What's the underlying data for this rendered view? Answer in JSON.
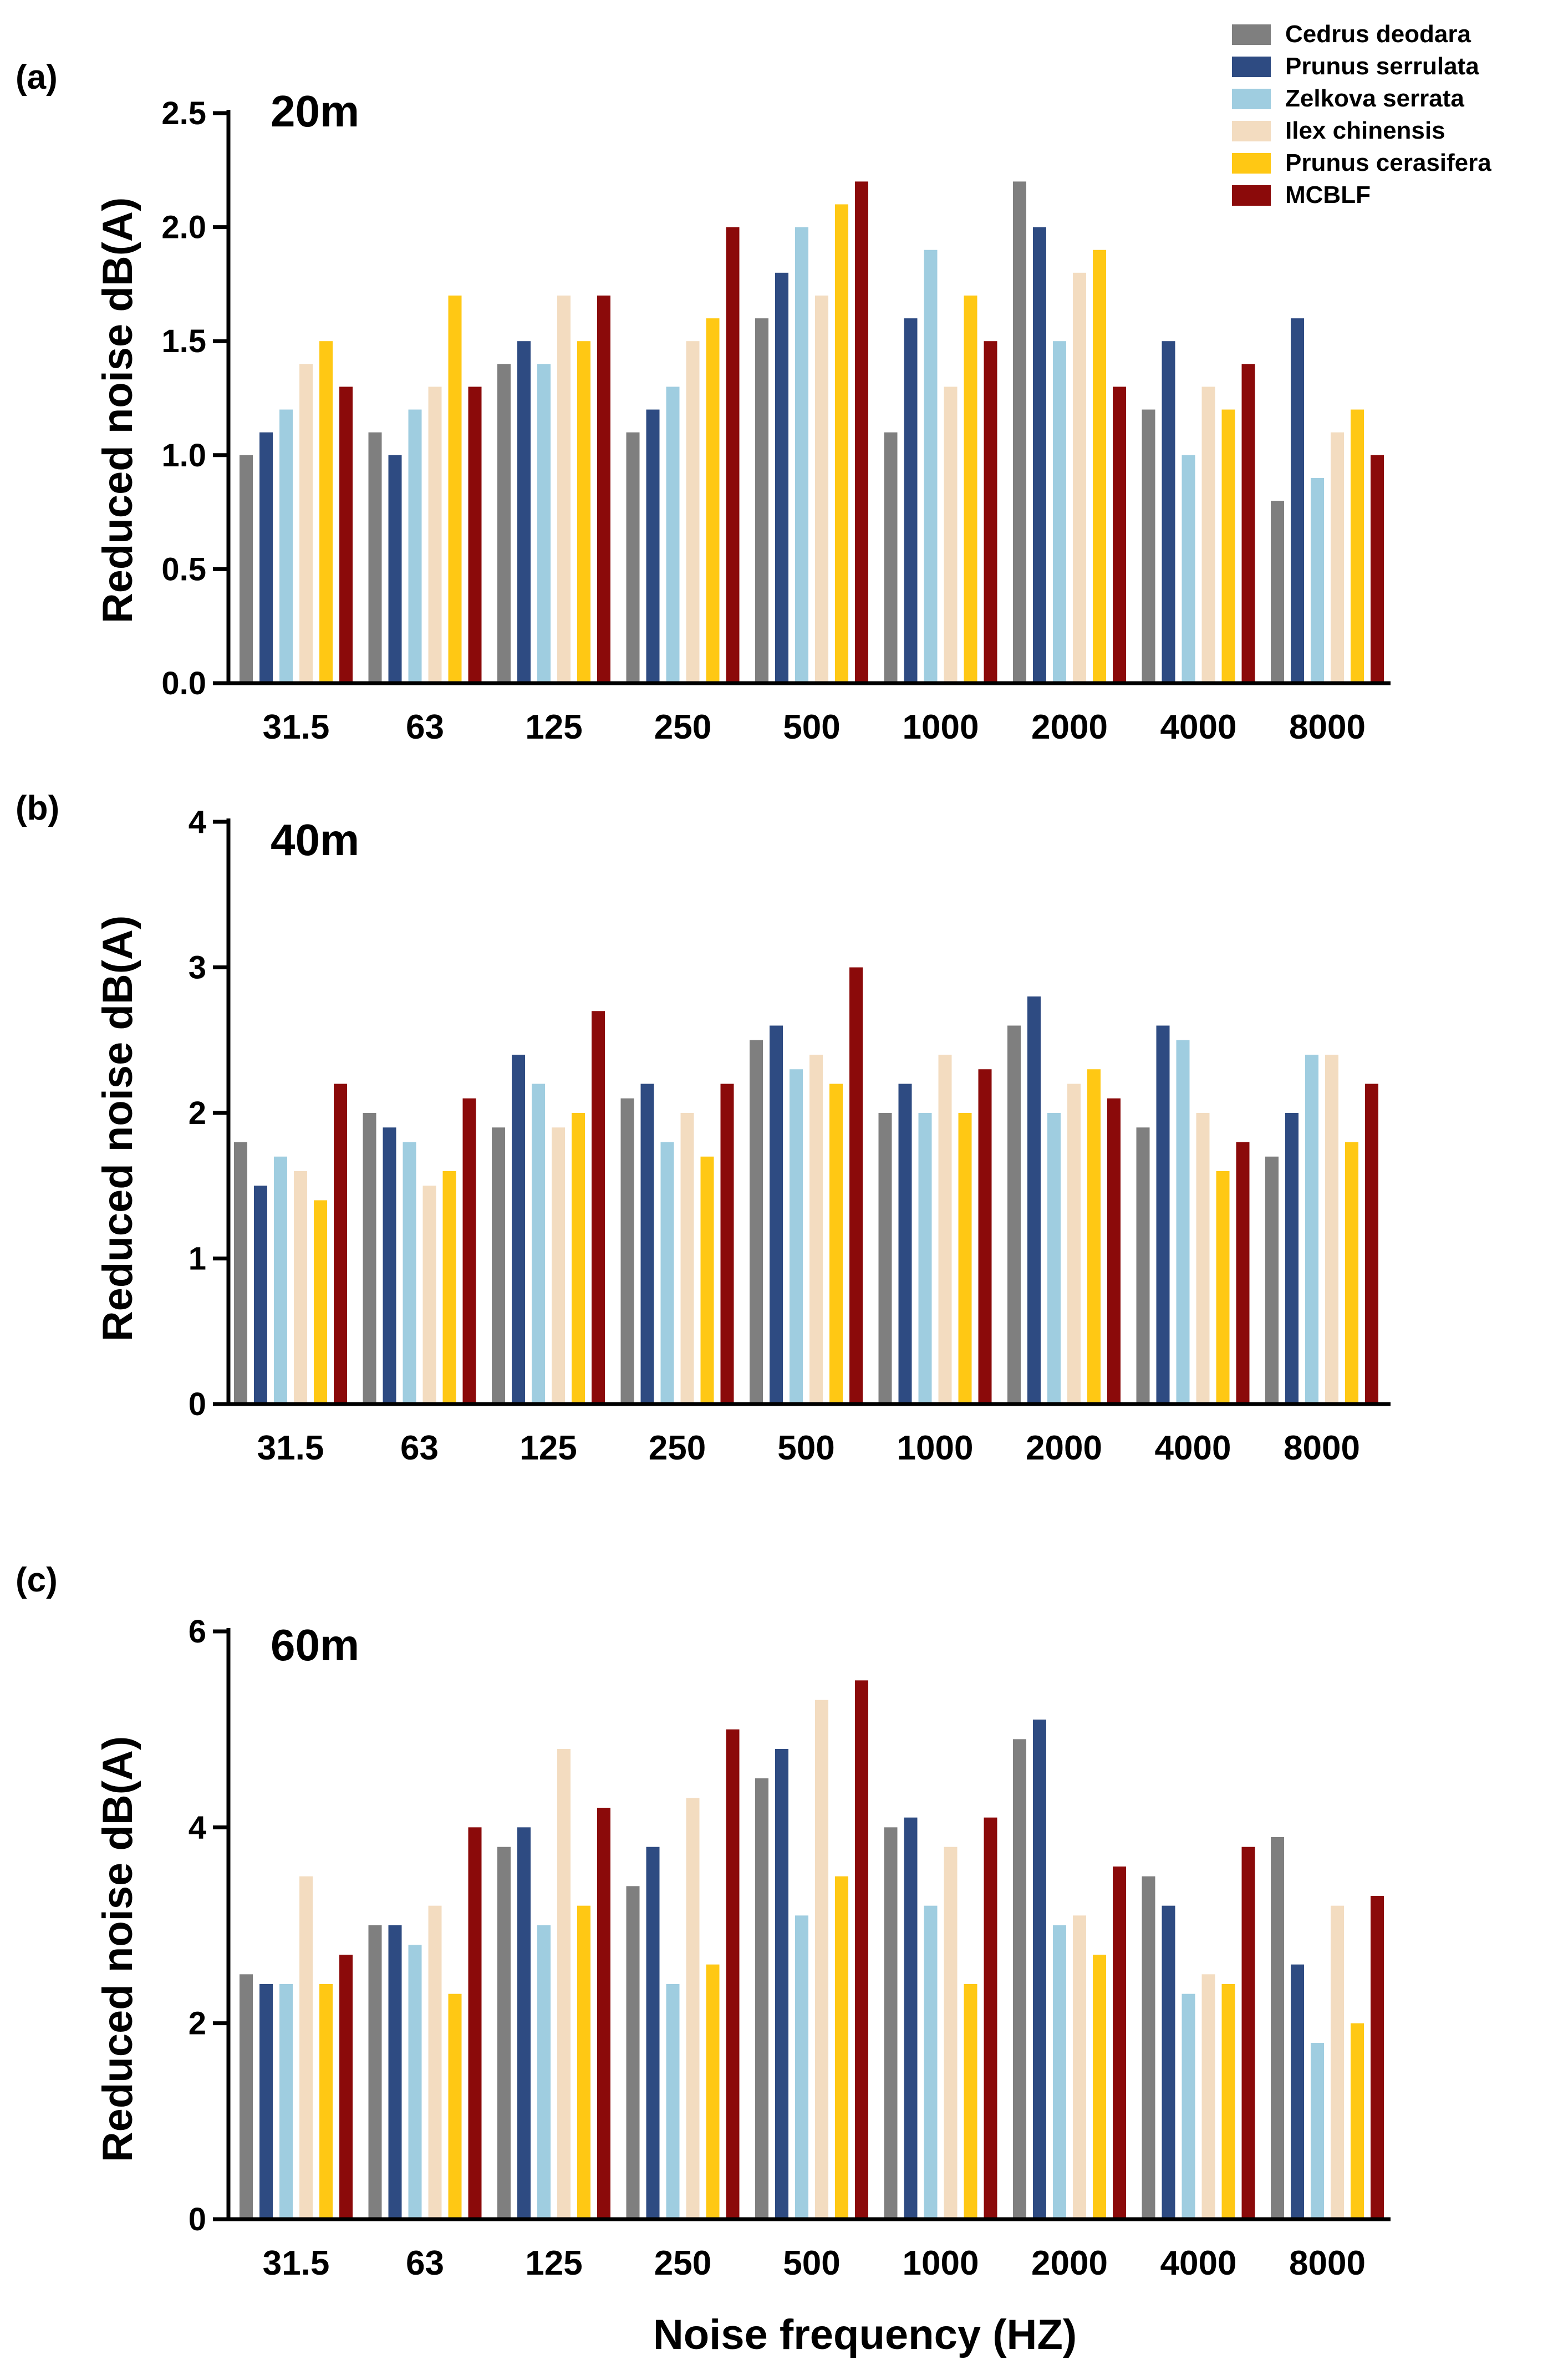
{
  "figure": {
    "xlabel": "Noise frequency (HZ)"
  },
  "legend": [
    {
      "name": "Cedrus deodara",
      "color": "#7f7f7f"
    },
    {
      "name": "Prunus serrulata",
      "color": "#2e4b82"
    },
    {
      "name": "Zelkova serrata",
      "color": "#9fcde0"
    },
    {
      "name": "Ilex chinensis",
      "color": "#f3dcc0"
    },
    {
      "name": "Prunus cerasifera",
      "color": "#ffc814"
    },
    {
      "name": "MCBLF",
      "color": "#8b0a0a"
    }
  ],
  "chart_data": [
    {
      "type": "bar",
      "panel": "(a)",
      "title": "20m",
      "ylabel": "Reduced noise dB(A)",
      "xlabel": "",
      "ylim": [
        0,
        2.5
      ],
      "yticks": [
        "0.0",
        "0.5",
        "1.0",
        "1.5",
        "2.0",
        "2.5"
      ],
      "categories": [
        "31.5",
        "63",
        "125",
        "250",
        "500",
        "1000",
        "2000",
        "4000",
        "8000"
      ],
      "series": [
        {
          "name": "Cedrus deodara",
          "values": [
            1.0,
            1.1,
            1.4,
            1.1,
            1.6,
            1.1,
            2.2,
            1.2,
            0.8
          ]
        },
        {
          "name": "Prunus serrulata",
          "values": [
            1.1,
            1.0,
            1.5,
            1.2,
            1.8,
            1.6,
            2.0,
            1.5,
            1.6
          ]
        },
        {
          "name": "Zelkova serrata",
          "values": [
            1.2,
            1.2,
            1.4,
            1.3,
            2.0,
            1.9,
            1.5,
            1.0,
            0.9
          ]
        },
        {
          "name": "Ilex chinensis",
          "values": [
            1.4,
            1.3,
            1.7,
            1.5,
            1.7,
            1.3,
            1.8,
            1.3,
            1.1
          ]
        },
        {
          "name": "Prunus cerasifera",
          "values": [
            1.5,
            1.7,
            1.5,
            1.6,
            2.1,
            1.7,
            1.9,
            1.2,
            1.2
          ]
        },
        {
          "name": "MCBLF",
          "values": [
            1.3,
            1.3,
            1.7,
            2.0,
            2.2,
            1.5,
            1.3,
            1.4,
            1.0
          ]
        }
      ]
    },
    {
      "type": "bar",
      "panel": "(b)",
      "title": "40m",
      "ylabel": "Reduced noise dB(A)",
      "xlabel": "",
      "ylim": [
        0,
        4
      ],
      "yticks": [
        "0",
        "1",
        "2",
        "3",
        "4"
      ],
      "categories": [
        "31.5",
        "63",
        "125",
        "250",
        "500",
        "1000",
        "2000",
        "4000",
        "8000"
      ],
      "series": [
        {
          "name": "Cedrus deodara",
          "values": [
            1.8,
            2.0,
            1.9,
            2.1,
            2.5,
            2.0,
            2.6,
            1.9,
            1.7
          ]
        },
        {
          "name": "Prunus serrulata",
          "values": [
            1.5,
            1.9,
            2.4,
            2.2,
            2.6,
            2.2,
            2.8,
            2.6,
            2.0
          ]
        },
        {
          "name": "Zelkova serrata",
          "values": [
            1.7,
            1.8,
            2.2,
            1.8,
            2.3,
            2.0,
            2.0,
            2.5,
            2.4
          ]
        },
        {
          "name": "Ilex chinensis",
          "values": [
            1.6,
            1.5,
            1.9,
            2.0,
            2.4,
            2.4,
            2.2,
            2.0,
            2.4
          ]
        },
        {
          "name": "Prunus cerasifera",
          "values": [
            1.4,
            1.6,
            2.0,
            1.7,
            2.2,
            2.0,
            2.3,
            1.6,
            1.8
          ]
        },
        {
          "name": "MCBLF",
          "values": [
            2.2,
            2.1,
            2.7,
            2.2,
            3.0,
            2.3,
            2.1,
            1.8,
            2.2
          ]
        }
      ]
    },
    {
      "type": "bar",
      "panel": "(c)",
      "title": "60m",
      "ylabel": "Reduced noise dB(A)",
      "xlabel": "Noise frequency (HZ)",
      "ylim": [
        0,
        6
      ],
      "yticks": [
        "0",
        "2",
        "4",
        "6"
      ],
      "categories": [
        "31.5",
        "63",
        "125",
        "250",
        "500",
        "1000",
        "2000",
        "4000",
        "8000"
      ],
      "series": [
        {
          "name": "Cedrus deodara",
          "values": [
            2.5,
            3.0,
            3.8,
            3.4,
            4.5,
            4.0,
            4.9,
            3.5,
            3.9
          ]
        },
        {
          "name": "Prunus serrulata",
          "values": [
            2.4,
            3.0,
            4.0,
            3.8,
            4.8,
            4.1,
            5.1,
            3.2,
            2.6
          ]
        },
        {
          "name": "Zelkova serrata",
          "values": [
            2.4,
            2.8,
            3.0,
            2.4,
            3.1,
            3.2,
            3.0,
            2.3,
            1.8
          ]
        },
        {
          "name": "Ilex chinensis",
          "values": [
            3.5,
            3.2,
            4.8,
            4.3,
            5.3,
            3.8,
            3.1,
            2.5,
            3.2
          ]
        },
        {
          "name": "Prunus cerasifera",
          "values": [
            2.4,
            2.3,
            3.2,
            2.6,
            3.5,
            2.4,
            2.7,
            2.4,
            2.0
          ]
        },
        {
          "name": "MCBLF",
          "values": [
            2.7,
            4.0,
            4.2,
            5.0,
            5.5,
            4.1,
            3.6,
            3.8,
            3.3
          ]
        }
      ]
    }
  ]
}
